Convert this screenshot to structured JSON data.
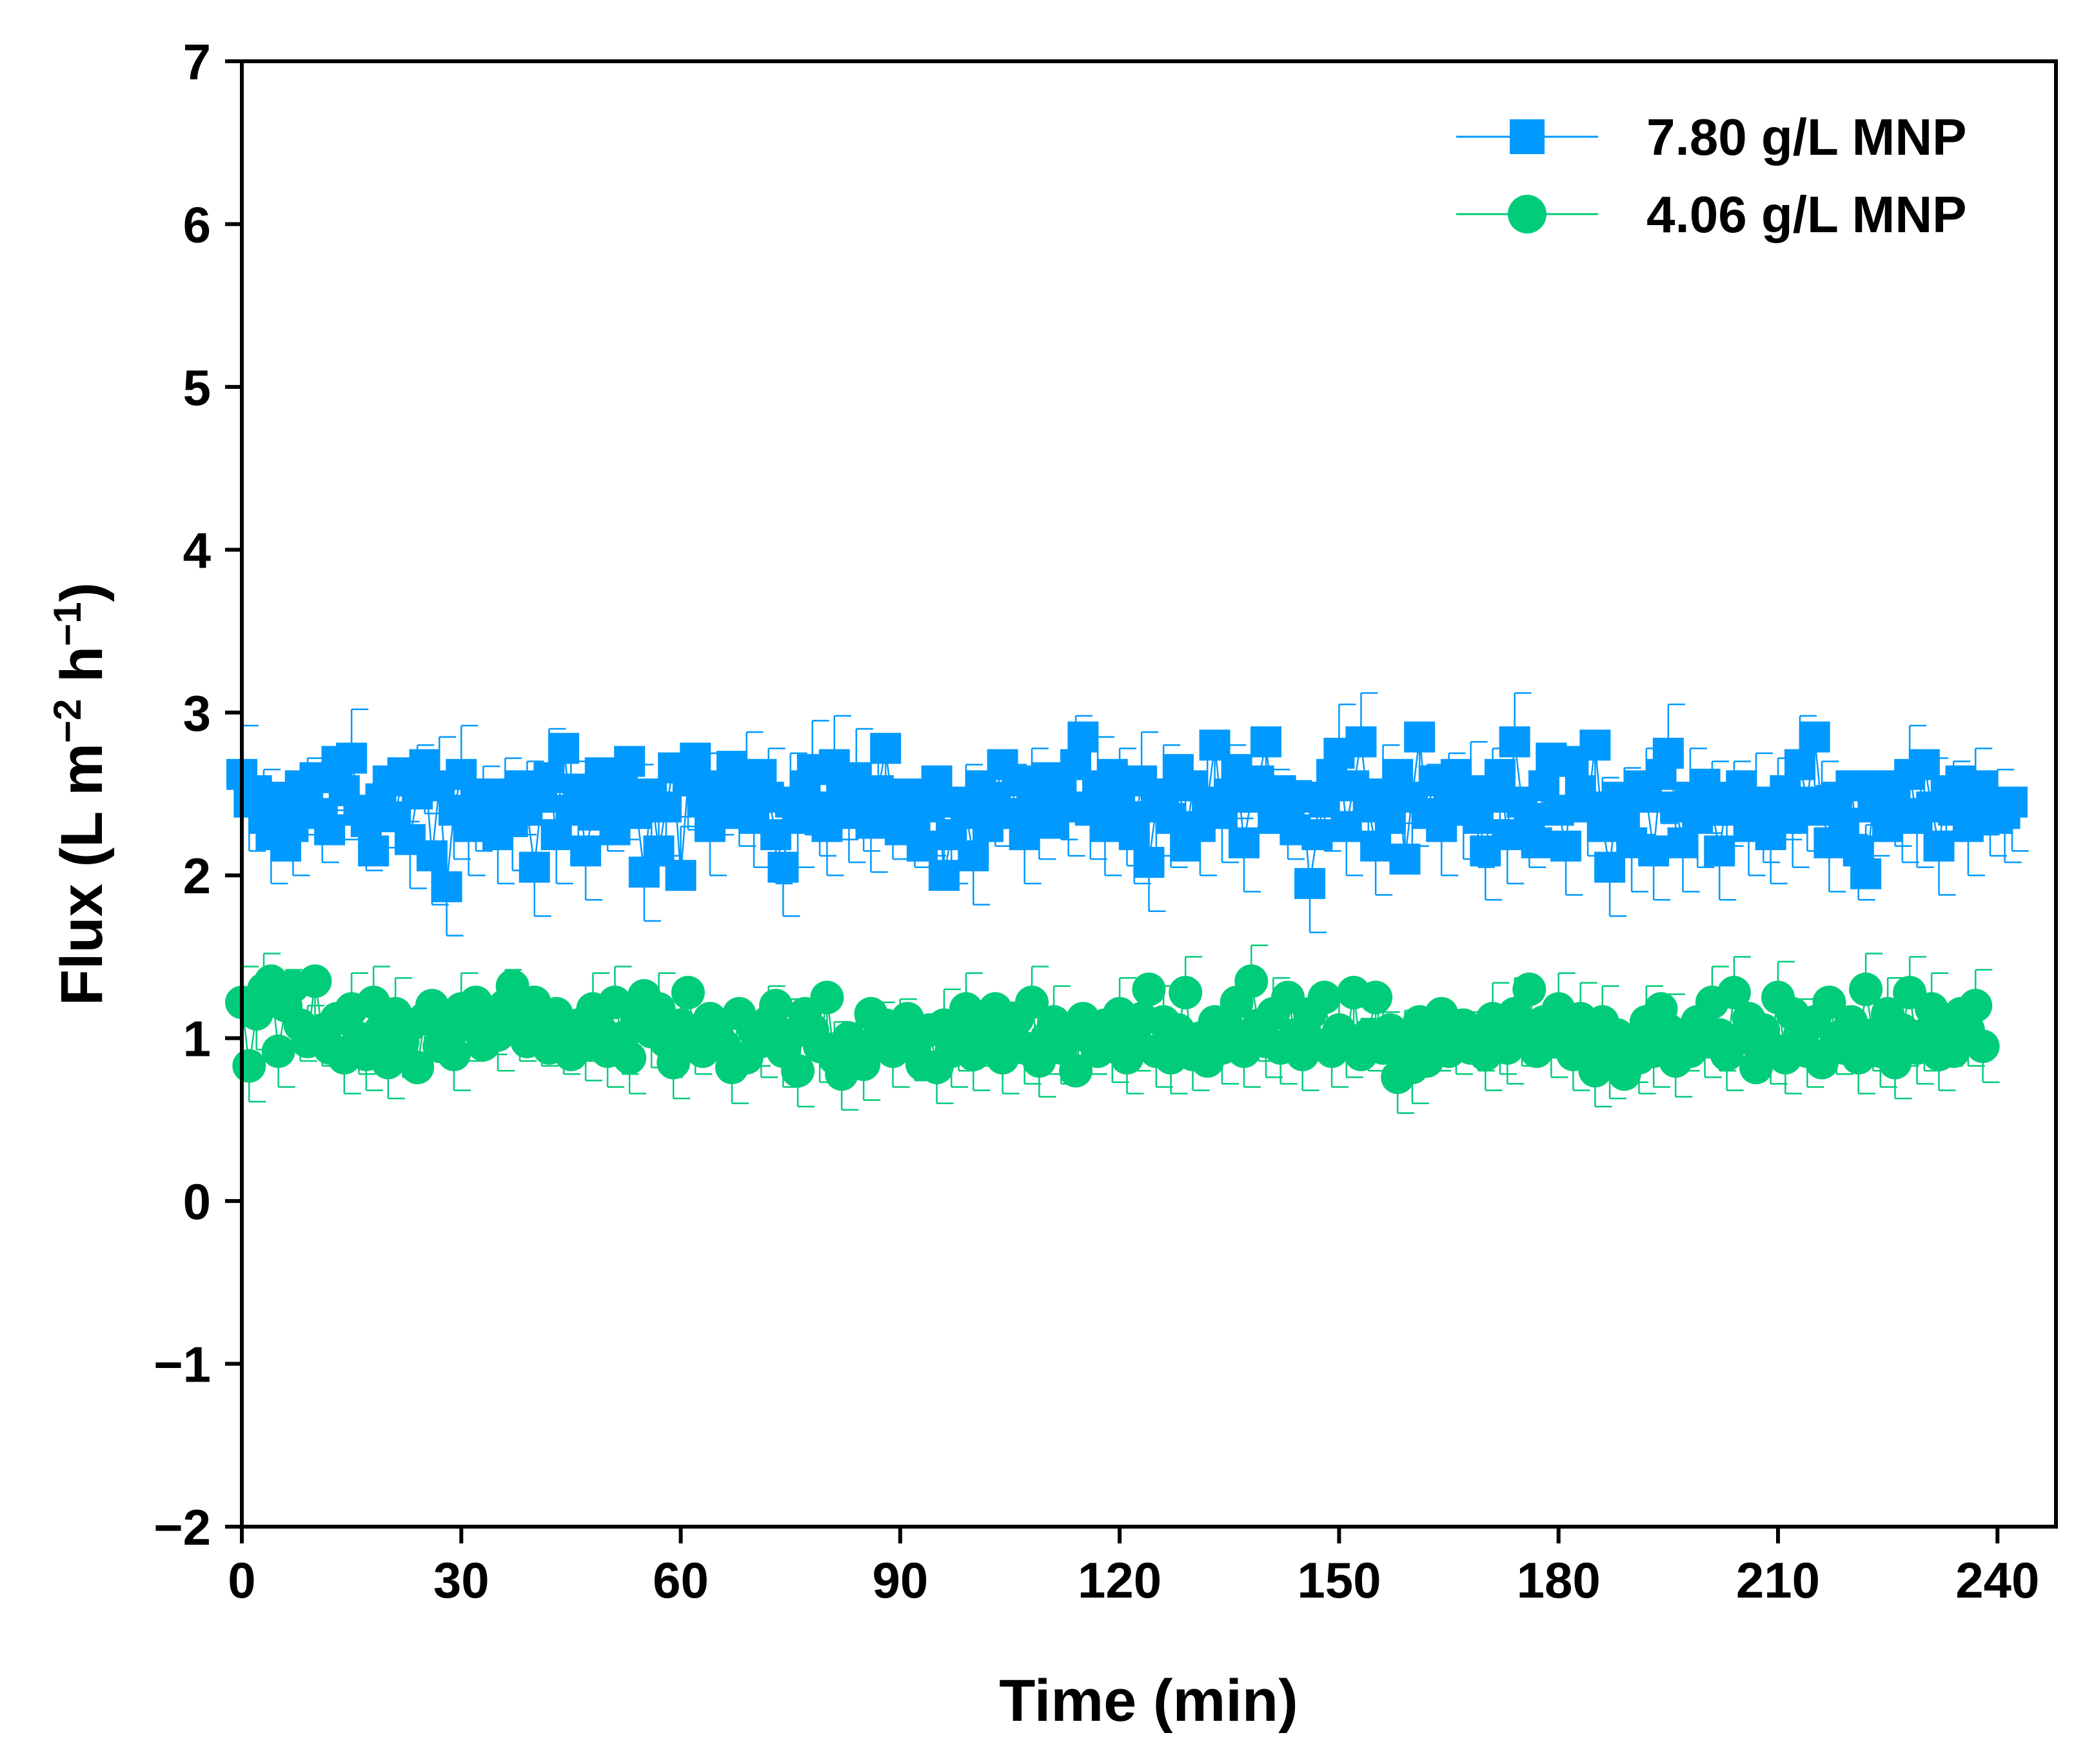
{
  "chart_data": {
    "type": "scatter",
    "title": "",
    "xlabel": "Time (min)",
    "ylabel": {
      "base": "Flux (L m",
      "sup1": "−2",
      "mid": " h",
      "sup2": "−1",
      "end": ")"
    },
    "xlim": [
      0,
      248
    ],
    "ylim": [
      -2,
      7
    ],
    "xticks": [
      0,
      30,
      60,
      90,
      120,
      150,
      180,
      210,
      240
    ],
    "xtick_labels": [
      "0",
      "30",
      "60",
      "90",
      "120",
      "150",
      "180",
      "210",
      "240"
    ],
    "yticks": [
      -2,
      -1,
      0,
      1,
      2,
      3,
      4,
      5,
      6,
      7
    ],
    "ytick_labels": [
      "−2",
      "−1",
      "0",
      "1",
      "2",
      "3",
      "4",
      "5",
      "6",
      "7"
    ],
    "legend_position": "top-right",
    "x_start": 0,
    "x_step": 1,
    "series": [
      {
        "name": "7.80 g/L MNP",
        "marker": "square",
        "color": "#0099ff",
        "error": 0.3,
        "values": [
          2.62,
          2.45,
          2.52,
          2.35,
          2.25,
          2.48,
          2.18,
          2.3,
          2.55,
          2.42,
          2.6,
          2.38,
          2.28,
          2.7,
          2.52,
          2.72,
          2.4,
          2.33,
          2.15,
          2.47,
          2.58,
          2.36,
          2.63,
          2.22,
          2.5,
          2.68,
          2.12,
          2.55,
          1.93,
          2.4,
          2.62,
          2.3,
          2.45,
          2.37,
          2.5,
          2.25,
          2.42,
          2.33,
          2.55,
          2.4,
          2.05,
          2.48,
          2.6,
          2.25,
          2.78,
          2.4,
          2.53,
          2.15,
          2.37,
          2.63,
          2.45,
          2.28,
          2.52,
          2.7,
          2.38,
          2.02,
          2.5,
          2.15,
          2.42,
          2.66,
          2.0,
          2.58,
          2.72,
          2.45,
          2.3,
          2.55,
          2.38,
          2.67,
          2.48,
          2.58,
          2.35,
          2.62,
          2.48,
          2.25,
          2.05,
          2.45,
          2.35,
          2.55,
          2.65,
          2.42,
          2.3,
          2.68,
          2.52,
          2.38,
          2.6,
          2.45,
          2.32,
          2.52,
          2.78,
          2.4,
          2.28,
          2.5,
          2.35,
          2.18,
          2.42,
          2.58,
          2.0,
          2.25,
          2.45,
          2.38,
          2.12,
          2.55,
          2.3,
          2.48,
          2.68,
          2.38,
          2.58,
          2.25,
          2.48,
          2.4,
          2.6,
          2.32,
          2.52,
          2.42,
          2.68,
          2.85,
          2.4,
          2.55,
          2.3,
          2.62,
          2.48,
          2.36,
          2.25,
          2.58,
          2.08,
          2.42,
          2.5,
          2.35,
          2.65,
          2.18,
          2.55,
          2.3,
          2.45,
          2.8,
          2.38,
          2.5,
          2.65,
          2.2,
          2.48,
          2.58,
          2.82,
          2.35,
          2.52,
          2.4,
          2.28,
          2.48,
          1.95,
          2.25,
          2.45,
          2.62,
          2.75,
          2.3,
          2.55,
          2.82,
          2.42,
          2.18,
          2.5,
          2.35,
          2.62,
          2.1,
          2.48,
          2.85,
          2.38,
          2.58,
          2.3,
          2.45,
          2.62,
          2.4,
          2.52,
          2.35,
          2.15,
          2.48,
          2.62,
          2.25,
          2.82,
          2.45,
          2.35,
          2.2,
          2.55,
          2.72,
          2.4,
          2.18,
          2.7,
          2.52,
          2.42,
          2.8,
          2.3,
          2.05,
          2.48,
          2.36,
          2.2,
          2.55,
          2.48,
          2.15,
          2.62,
          2.75,
          2.42,
          2.2,
          2.48,
          2.35,
          2.56,
          2.4,
          2.15,
          2.48,
          2.4,
          2.55,
          2.3,
          2.45,
          2.38,
          2.25,
          2.42,
          2.52,
          2.35,
          2.68,
          2.45,
          2.85,
          2.4,
          2.2,
          2.48,
          2.32,
          2.55,
          2.15,
          2.01,
          2.42,
          2.55,
          2.3,
          2.48,
          2.38,
          2.62,
          2.35,
          2.68,
          2.42,
          2.18,
          2.52,
          2.4,
          2.58,
          2.3,
          2.48,
          2.55,
          2.42,
          2.35,
          2.38,
          2.45
        ]
      },
      {
        "name": "4.06 g/L MNP",
        "marker": "circle",
        "color": "#00cc7a",
        "error": 0.22,
        "values": [
          1.22,
          0.83,
          1.15,
          1.3,
          1.35,
          0.92,
          1.2,
          1.32,
          1.08,
          0.98,
          1.35,
          1.05,
          0.94,
          1.12,
          0.88,
          1.18,
          1.0,
          0.9,
          1.22,
          1.05,
          0.85,
          1.15,
          0.98,
          1.08,
          0.82,
          1.12,
          1.2,
          0.95,
          1.05,
          0.9,
          1.18,
          1.08,
          1.22,
          0.96,
          1.12,
          1.02,
          1.2,
          1.32,
          1.08,
          0.98,
          1.22,
          1.05,
          0.94,
          1.15,
          1.0,
          0.9,
          1.08,
          0.96,
          1.18,
          1.05,
          0.92,
          1.22,
          1.0,
          0.88,
          1.1,
          1.26,
          1.04,
          1.18,
          0.98,
          0.85,
          1.08,
          1.28,
          1.0,
          0.92,
          1.12,
          1.02,
          0.95,
          0.82,
          1.15,
          0.88,
          1.05,
          0.98,
          1.1,
          1.2,
          0.92,
          1.02,
          0.8,
          1.15,
          1.05,
          0.95,
          1.25,
          0.88,
          0.78,
          1.0,
          0.92,
          0.84,
          1.15,
          1.0,
          1.08,
          0.92,
          1.02,
          1.12,
          0.96,
          0.84,
          1.05,
          0.82,
          1.08,
          0.92,
          1.02,
          1.18,
          0.9,
          1.05,
          0.98,
          1.18,
          0.88,
          1.0,
          1.12,
          0.94,
          1.22,
          0.86,
          1.0,
          1.1,
          0.94,
          1.05,
          0.8,
          1.12,
          1.0,
          0.92,
          1.08,
          0.95,
          1.15,
          0.88,
          1.02,
          1.12,
          1.3,
          0.92,
          1.1,
          0.88,
          1.05,
          1.28,
          0.9,
          1.0,
          0.86,
          1.1,
          0.94,
          1.05,
          1.22,
          0.92,
          1.35,
          1.08,
          0.98,
          1.15,
          0.94,
          1.25,
          1.02,
          0.9,
          1.15,
          0.96,
          1.25,
          0.92,
          1.05,
          0.98,
          1.28,
          0.9,
          1.02,
          1.25,
          0.94,
          1.05,
          0.76,
          0.95,
          0.82,
          1.1,
          0.86,
          1.02,
          1.15,
          0.92,
          1.0,
          1.08,
          0.94,
          1.02,
          0.9,
          1.12,
          1.0,
          0.94,
          1.15,
          1.05,
          1.3,
          0.92,
          1.1,
          0.98,
          1.18,
          1.05,
          0.9,
          1.12,
          0.96,
          0.8,
          1.1,
          0.85,
          1.02,
          0.78,
          0.95,
          0.88,
          1.1,
          0.92,
          1.18,
          1.05,
          0.86,
          1.02,
          0.92,
          1.1,
          0.98,
          1.22,
          1.02,
          0.9,
          1.28,
          1.0,
          1.12,
          0.82,
          1.05,
          0.94,
          1.25,
          0.88,
          1.15,
          1.02,
          0.92,
          1.1,
          0.85,
          1.22,
          1.0,
          0.94,
          1.1,
          0.88,
          1.3,
          1.02,
          0.92,
          1.15,
          0.85,
          1.05,
          1.28,
          0.94,
          1.02,
          1.18,
          0.9,
          1.05,
          0.92,
          1.15,
          1.05,
          1.2,
          0.95
        ]
      }
    ]
  }
}
